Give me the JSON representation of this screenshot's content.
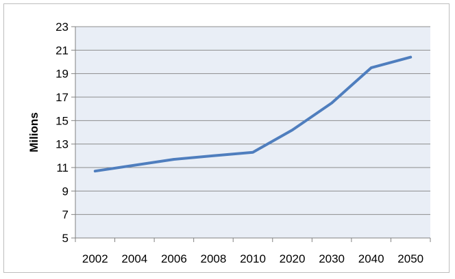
{
  "chart_data": {
    "type": "line",
    "title": "",
    "xlabel": "",
    "ylabel": "Milions",
    "categories": [
      "2002",
      "2004",
      "2006",
      "2008",
      "2010",
      "2020",
      "2030",
      "2040",
      "2050"
    ],
    "series": [
      {
        "values": [
          10.7,
          11.2,
          11.7,
          12.0,
          12.3,
          14.2,
          16.5,
          19.5,
          20.4
        ]
      }
    ],
    "ylim": [
      5,
      23
    ],
    "yticks": [
      5,
      7,
      9,
      11,
      13,
      15,
      17,
      19,
      21,
      23
    ],
    "grid": true,
    "legend": "none",
    "colors": {
      "line": "#4f7ebe",
      "plot_bg": "#e9eef6",
      "grid": "#8c8c8c"
    }
  }
}
